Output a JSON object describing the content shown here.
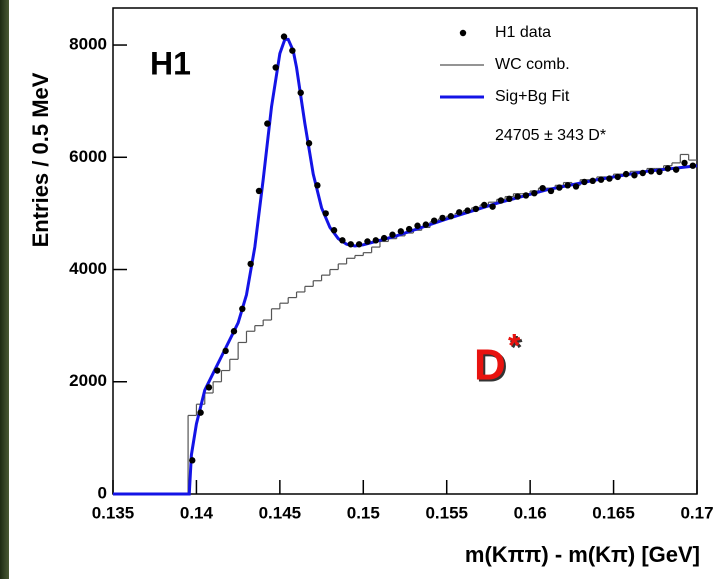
{
  "chart_data": {
    "type": "scatter",
    "y_label": "Entries / 0.5 MeV",
    "x_label": "m(Kππ) - m(Kπ) [GeV]",
    "annotations": [
      "H1",
      "24705 ± 343 D*"
    ],
    "signal_label": {
      "base": "D",
      "sup": "*",
      "color": "#e8130f"
    },
    "xlim": [
      0.135,
      0.17
    ],
    "ylim": [
      0,
      8660
    ],
    "xticks": [
      0.135,
      0.14,
      0.145,
      0.15,
      0.155,
      0.16,
      0.165,
      0.17
    ],
    "yticks": [
      0,
      2000,
      4000,
      6000,
      8000
    ],
    "series": [
      {
        "name": "H1 data",
        "style": "points",
        "color": "#000000",
        "x": [
          0.13975,
          0.14025,
          0.14075,
          0.14125,
          0.14175,
          0.14225,
          0.14275,
          0.14325,
          0.14375,
          0.14425,
          0.14475,
          0.14525,
          0.14575,
          0.14625,
          0.14675,
          0.14725,
          0.14775,
          0.14825,
          0.14875,
          0.14925,
          0.14975,
          0.15025,
          0.15075,
          0.15125,
          0.15175,
          0.15225,
          0.15275,
          0.15325,
          0.15375,
          0.15425,
          0.15475,
          0.15525,
          0.15575,
          0.15625,
          0.15675,
          0.15725,
          0.15775,
          0.15825,
          0.15875,
          0.15925,
          0.15975,
          0.16025,
          0.16075,
          0.16125,
          0.16175,
          0.16225,
          0.16275,
          0.16325,
          0.16375,
          0.16425,
          0.16475,
          0.16525,
          0.16575,
          0.16625,
          0.16675,
          0.16725,
          0.16775,
          0.16825,
          0.16875,
          0.16925,
          0.16975
        ],
        "values": [
          600,
          1450,
          1900,
          2200,
          2550,
          2900,
          3300,
          4100,
          5400,
          6600,
          7600,
          8150,
          7900,
          7150,
          6250,
          5500,
          5000,
          4700,
          4520,
          4450,
          4450,
          4500,
          4520,
          4560,
          4620,
          4680,
          4720,
          4780,
          4800,
          4870,
          4920,
          4950,
          5020,
          5050,
          5080,
          5150,
          5120,
          5230,
          5260,
          5300,
          5320,
          5360,
          5450,
          5400,
          5460,
          5500,
          5480,
          5560,
          5580,
          5600,
          5620,
          5650,
          5700,
          5680,
          5720,
          5750,
          5740,
          5800,
          5780,
          5900,
          5850
        ]
      },
      {
        "name": "WC comb.",
        "style": "step",
        "color": "#555555",
        "bins": [
          0.1395,
          0.14,
          0.1405,
          0.141,
          0.1415,
          0.142,
          0.1425,
          0.143,
          0.1435,
          0.144,
          0.1445,
          0.145,
          0.1455,
          0.146,
          0.1465,
          0.147,
          0.1475,
          0.148,
          0.1485,
          0.149,
          0.1495,
          0.15,
          0.1505,
          0.151,
          0.1515,
          0.152,
          0.1525,
          0.153,
          0.1535,
          0.154,
          0.1545,
          0.155,
          0.1555,
          0.156,
          0.1565,
          0.157,
          0.1575,
          0.158,
          0.1585,
          0.159,
          0.1595,
          0.16,
          0.1605,
          0.161,
          0.1615,
          0.162,
          0.1625,
          0.163,
          0.1635,
          0.164,
          0.1645,
          0.165,
          0.1655,
          0.166,
          0.1665,
          0.167,
          0.1675,
          0.168,
          0.1685,
          0.169,
          0.1695,
          0.17
        ],
        "values": [
          1400,
          1600,
          1800,
          2000,
          2200,
          2400,
          2700,
          2900,
          3000,
          3100,
          3300,
          3400,
          3500,
          3600,
          3700,
          3800,
          3900,
          4000,
          4100,
          4200,
          4250,
          4300,
          4400,
          4500,
          4550,
          4600,
          4650,
          4700,
          4750,
          4850,
          4900,
          4950,
          5000,
          5050,
          5100,
          5150,
          5200,
          5250,
          5300,
          5350,
          5350,
          5400,
          5450,
          5450,
          5500,
          5550,
          5500,
          5600,
          5600,
          5650,
          5650,
          5700,
          5700,
          5750,
          5750,
          5800,
          5800,
          5850,
          5900,
          6050,
          5950
        ]
      },
      {
        "name": "Sig+Bg Fit",
        "style": "line",
        "color": "#1414e6",
        "x": [
          0.135,
          0.13957,
          0.1397,
          0.14,
          0.1405,
          0.141,
          0.1415,
          0.142,
          0.1425,
          0.143,
          0.1435,
          0.144,
          0.1445,
          0.145,
          0.1453,
          0.1455,
          0.1458,
          0.146,
          0.1465,
          0.147,
          0.1475,
          0.148,
          0.1485,
          0.149,
          0.1495,
          0.15,
          0.152,
          0.155,
          0.158,
          0.161,
          0.164,
          0.167,
          0.17
        ],
        "values": [
          0,
          0,
          700,
          1250,
          1850,
          2150,
          2450,
          2750,
          3050,
          3550,
          4400,
          5600,
          6900,
          7850,
          8100,
          8100,
          7900,
          7600,
          6600,
          5700,
          5100,
          4750,
          4550,
          4450,
          4420,
          4440,
          4600,
          4900,
          5180,
          5420,
          5600,
          5750,
          5850
        ]
      }
    ]
  }
}
